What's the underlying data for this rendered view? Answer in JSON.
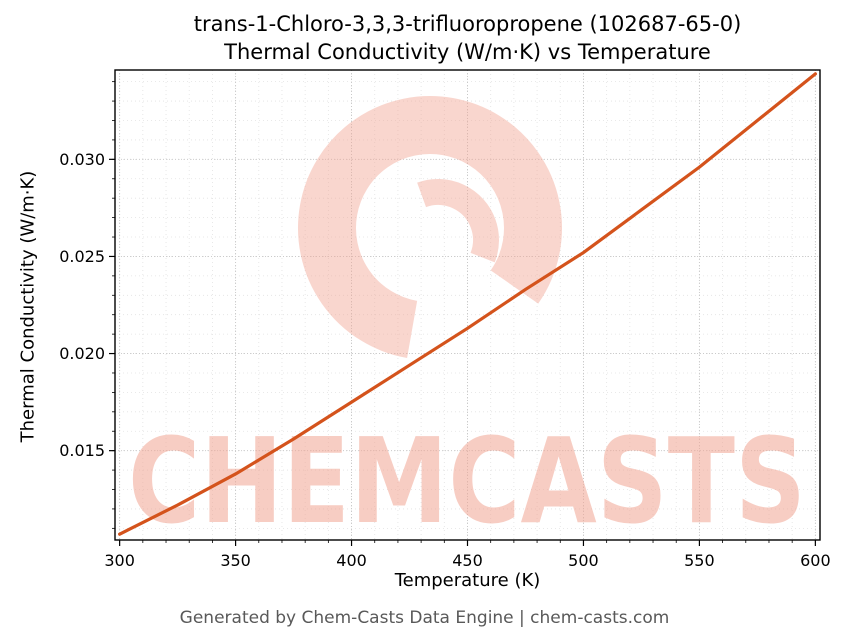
{
  "title": {
    "line1": "trans-1-Chloro-3,3,3-trifluoropropene (102687-65-0)",
    "line2": "Thermal Conductivity (W/m·K) vs Temperature"
  },
  "footer": "Generated by Chem-Casts Data Engine | chem-casts.com",
  "watermark": {
    "text": "CHEMCASTS",
    "logo": "chemcasts-c-logo",
    "color": "#f2a593",
    "opacity": 0.45
  },
  "chart_data": {
    "type": "line",
    "title": "trans-1-Chloro-3,3,3-trifluoropropene (102687-65-0) Thermal Conductivity (W/m·K) vs Temperature",
    "xlabel": "Temperature (K)",
    "ylabel": "Thermal Conductivity (W/m·K)",
    "xlim": [
      298,
      602
    ],
    "ylim": [
      0.0104,
      0.0346
    ],
    "x_ticks": [
      300,
      350,
      400,
      450,
      500,
      550,
      600
    ],
    "x_tick_labels": [
      "300",
      "350",
      "400",
      "450",
      "500",
      "550",
      "600"
    ],
    "y_ticks": [
      0.015,
      0.02,
      0.025,
      0.03
    ],
    "y_tick_labels": [
      "0.015",
      "0.020",
      "0.025",
      "0.030"
    ],
    "x_minor_step": 10,
    "y_minor_step": 0.001,
    "grid": true,
    "legend": "none",
    "series": [
      {
        "name": "thermal-conductivity",
        "color": "#d4531c",
        "x": [
          300,
          325,
          350,
          375,
          400,
          425,
          450,
          475,
          500,
          525,
          550,
          575,
          600
        ],
        "y": [
          0.0107,
          0.0122,
          0.0138,
          0.0156,
          0.0175,
          0.0194,
          0.0213,
          0.0233,
          0.0252,
          0.0274,
          0.0296,
          0.032,
          0.0344
        ]
      }
    ]
  }
}
